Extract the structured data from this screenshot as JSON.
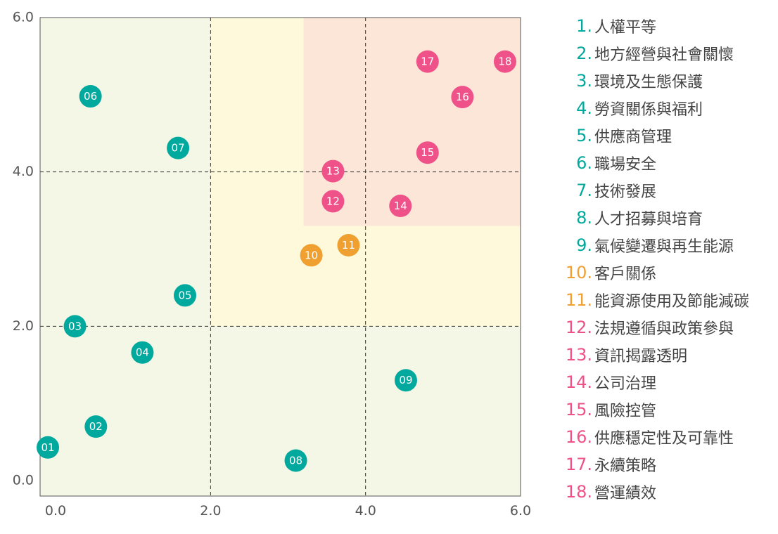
{
  "chart_data": {
    "type": "scatter",
    "title": "",
    "xlabel": "",
    "ylabel": "",
    "xlim": [
      -0.2,
      6.0
    ],
    "ylim": [
      -0.2,
      6.0
    ],
    "x_ticks": [
      "0.0",
      "2.0",
      "4.0",
      "6.0"
    ],
    "y_ticks": [
      "0.0",
      "2.0",
      "4.0",
      "6.0"
    ],
    "grid": "dashed lines at 2.0 and 4.0",
    "zones": [
      {
        "color": "#f4f6e6",
        "x": [
          -0.2,
          6.0
        ],
        "y": [
          -0.2,
          6.0
        ]
      },
      {
        "color": "#fdf9da",
        "x": [
          2.0,
          6.0
        ],
        "y": [
          2.0,
          6.0
        ]
      },
      {
        "color": "#fce6d8",
        "x": [
          3.2,
          6.0
        ],
        "y": [
          3.3,
          6.0
        ]
      }
    ],
    "points": [
      {
        "label": "01",
        "x": -0.1,
        "y": 0.43,
        "color": "#00a99d"
      },
      {
        "label": "02",
        "x": 0.52,
        "y": 0.7,
        "color": "#00a99d"
      },
      {
        "label": "03",
        "x": 0.25,
        "y": 2.0,
        "color": "#00a99d"
      },
      {
        "label": "04",
        "x": 1.12,
        "y": 1.66,
        "color": "#00a99d"
      },
      {
        "label": "05",
        "x": 1.67,
        "y": 2.4,
        "color": "#00a99d"
      },
      {
        "label": "06",
        "x": 0.45,
        "y": 4.98,
        "color": "#00a99d"
      },
      {
        "label": "07",
        "x": 1.58,
        "y": 4.31,
        "color": "#00a99d"
      },
      {
        "label": "08",
        "x": 3.1,
        "y": 0.26,
        "color": "#00a99d"
      },
      {
        "label": "09",
        "x": 4.52,
        "y": 1.3,
        "color": "#00a99d"
      },
      {
        "label": "10",
        "x": 3.3,
        "y": 2.92,
        "color": "#f0a030"
      },
      {
        "label": "11",
        "x": 3.78,
        "y": 3.05,
        "color": "#f0a030"
      },
      {
        "label": "12",
        "x": 3.58,
        "y": 3.62,
        "color": "#ef5288"
      },
      {
        "label": "13",
        "x": 3.58,
        "y": 4.01,
        "color": "#ef5288"
      },
      {
        "label": "14",
        "x": 4.45,
        "y": 3.56,
        "color": "#ef5288"
      },
      {
        "label": "15",
        "x": 4.8,
        "y": 4.25,
        "color": "#ef5288"
      },
      {
        "label": "16",
        "x": 5.25,
        "y": 4.97,
        "color": "#ef5288"
      },
      {
        "label": "17",
        "x": 4.8,
        "y": 5.43,
        "color": "#ef5288"
      },
      {
        "label": "18",
        "x": 5.8,
        "y": 5.43,
        "color": "#ef5288"
      }
    ],
    "legend": [
      {
        "num": "1.",
        "label": "人權平等",
        "color": "#00a99d"
      },
      {
        "num": "2.",
        "label": "地方經營與社會關懷",
        "color": "#00a99d"
      },
      {
        "num": "3.",
        "label": "環境及生態保護",
        "color": "#00a99d"
      },
      {
        "num": "4.",
        "label": "勞資關係與福利",
        "color": "#00a99d"
      },
      {
        "num": "5.",
        "label": "供應商管理",
        "color": "#00a99d"
      },
      {
        "num": "6.",
        "label": "職場安全",
        "color": "#00a99d"
      },
      {
        "num": "7.",
        "label": "技術發展",
        "color": "#00a99d"
      },
      {
        "num": "8.",
        "label": "人才招募與培育",
        "color": "#00a99d"
      },
      {
        "num": "9.",
        "label": "氣候變遷與再生能源",
        "color": "#00a99d"
      },
      {
        "num": "10.",
        "label": "客戶關係",
        "color": "#f0a030"
      },
      {
        "num": "11.",
        "label": "能資源使用及節能減碳",
        "color": "#f0a030"
      },
      {
        "num": "12.",
        "label": "法規遵循與政策參與",
        "color": "#ef5288"
      },
      {
        "num": "13.",
        "label": "資訊揭露透明",
        "color": "#ef5288"
      },
      {
        "num": "14.",
        "label": "公司治理",
        "color": "#ef5288"
      },
      {
        "num": "15.",
        "label": "風險控管",
        "color": "#ef5288"
      },
      {
        "num": "16.",
        "label": "供應穩定性及可靠性",
        "color": "#ef5288"
      },
      {
        "num": "17.",
        "label": "永續策略",
        "color": "#ef5288"
      },
      {
        "num": "18.",
        "label": "營運績效",
        "color": "#ef5288"
      }
    ]
  }
}
